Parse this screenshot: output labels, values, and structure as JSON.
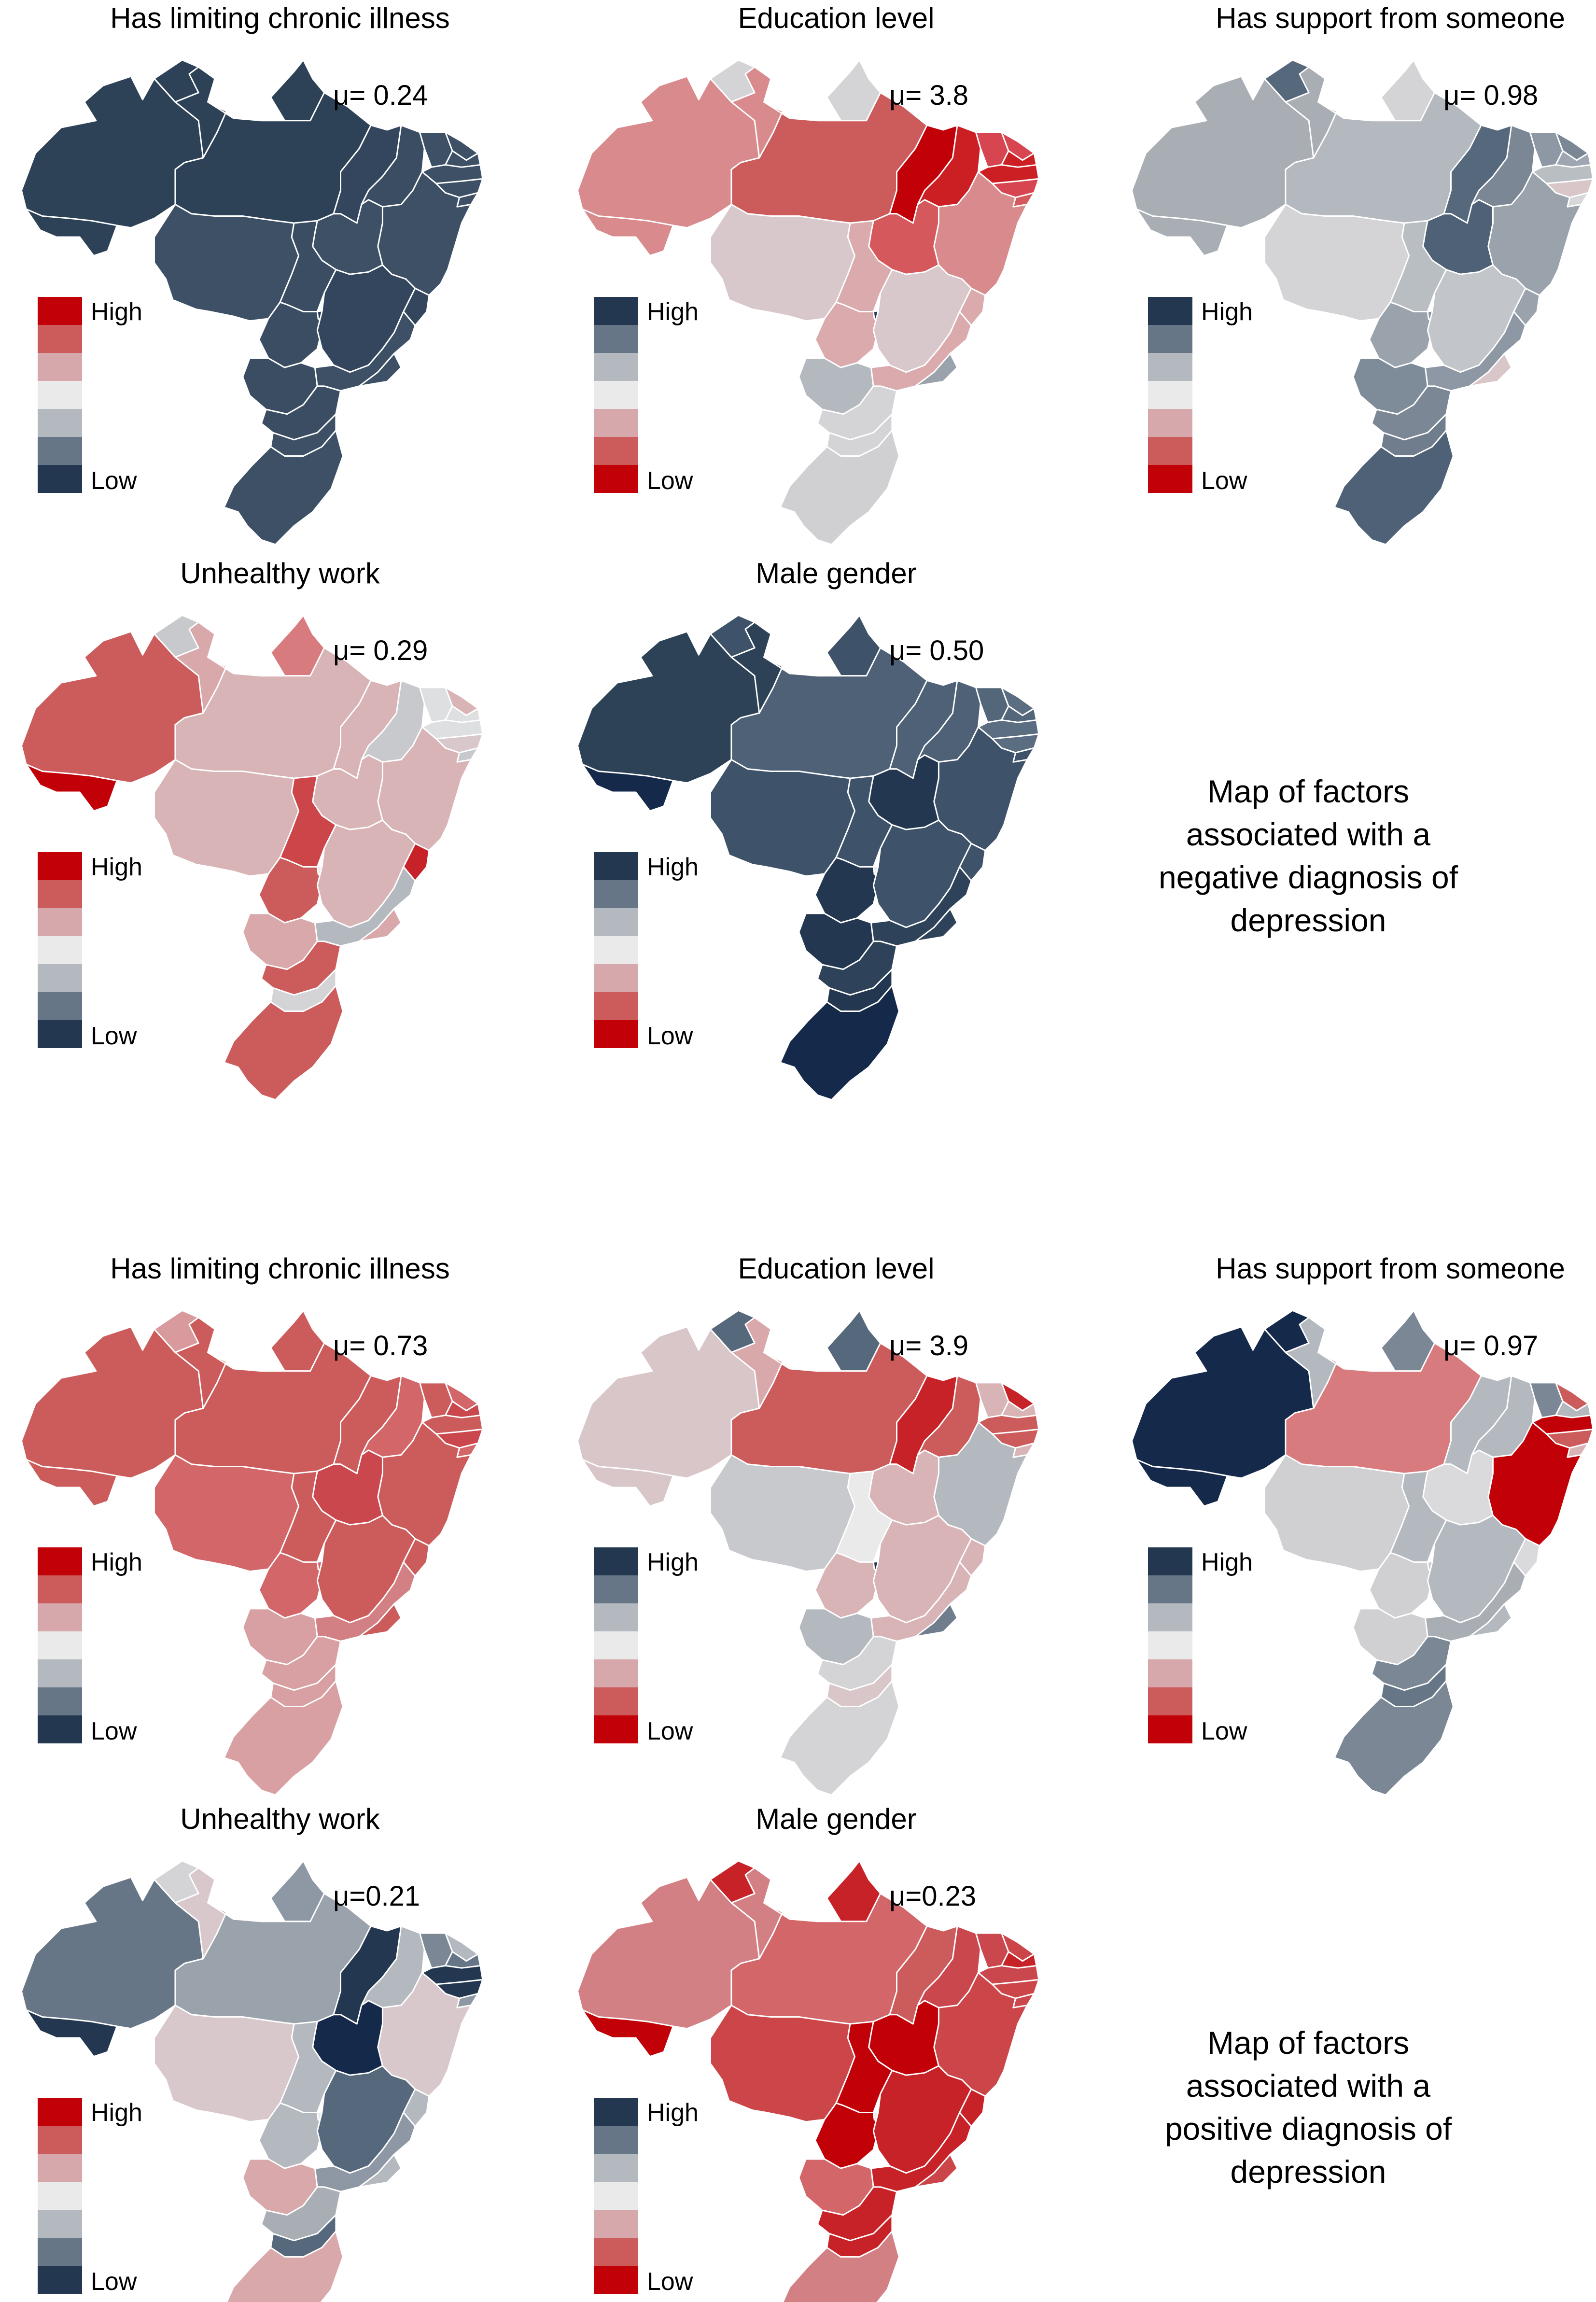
{
  "colors": {
    "navy": [
      "#233850",
      "#667687",
      "#b4b9bf"
    ],
    "white": "#eaeaea",
    "red": [
      "#d7a8ab",
      "#cc5c5c",
      "#c20008"
    ],
    "border": "#ffffff"
  },
  "sections": [
    {
      "caption": [
        "Map of factors",
        "associated with a",
        "negative diagnosis of",
        "depression"
      ],
      "panels": [
        {
          "title": "Has limiting chronic illness",
          "mu": "μ= 0.24",
          "legend": {
            "top_label": "High",
            "bottom_label": "Low",
            "scale": [
              "#c20008",
              "#cc5c5c",
              "#d7a8ab",
              "#eaeaea",
              "#b4b9bf",
              "#667687",
              "#233850"
            ]
          },
          "region_colors": [
            "#2d4157",
            "#2d4157",
            "#2d4157",
            "#2d4157",
            "#2d4157",
            "#2d4157",
            "#33465d",
            "#3a4d62",
            "#3d5066",
            "#3d5066",
            "#3d5066",
            "#3d5066",
            "#3d5066",
            "#3d5066",
            "#3d5066",
            "#3d5066",
            "#3d5066",
            "#3a4d62",
            "#3a4d62",
            "#263c55",
            "#33465d",
            "#33465d",
            "#3a4d62",
            "#3d5066",
            "#3d5066",
            "#3a4d62",
            "#3d5066",
            "#3d5066"
          ]
        },
        {
          "title": "Education level",
          "mu": "μ= 3.8",
          "legend": {
            "top_label": "High",
            "bottom_label": "Low",
            "scale": [
              "#233850",
              "#667687",
              "#b4b9bf",
              "#eaeaea",
              "#d7a8ab",
              "#cc5c5c",
              "#c20008"
            ]
          },
          "region_colors": [
            "#d88a8d",
            "#d88a8d",
            "#d88a8d",
            "#d4d4d6",
            "#cc5c5c",
            "#d4d4d6",
            "#c20008",
            "#cc1f24",
            "#d64550",
            "#d64550",
            "#cc1f24",
            "#cc1f24",
            "#d64550",
            "#d4585c",
            "#d88a8d",
            "#d8c8cb",
            "#d4585c",
            "#dbaaac",
            "#dbaaac",
            "#233850",
            "#d8c8cb",
            "#dbaaac",
            "#b4b9bf",
            "#dbaaac",
            "#9aa2ab",
            "#d4d4d6",
            "#d4d4d6",
            "#d0d0d3"
          ]
        },
        {
          "title": "Has support from someone",
          "mu": "μ= 0.98",
          "legend": {
            "top_label": "High",
            "bottom_label": "Low",
            "scale": [
              "#233850",
              "#667687",
              "#b4b9bf",
              "#eaeaea",
              "#d7a8ab",
              "#cc5c5c",
              "#c20008"
            ]
          },
          "region_colors": [
            "#a9aeb4",
            "#a9aeb4",
            "#a9aeb4",
            "#d4d4d6",
            "#b4b9bf",
            "#56687c",
            "#56687c",
            "#7b8795",
            "#8d98a4",
            "#7b8795",
            "#9ea7b1",
            "#b9bec3",
            "#d8c6c9",
            "#d7d7d9",
            "#9aa2ab",
            "#d4d4d6",
            "#4e6176",
            "#b9bec3",
            "#9aa2ab",
            "#8794a1",
            "#c2c5c9",
            "#9aa2ab",
            "#7e8b98",
            "#8d98a4",
            "#d8c6c9",
            "#7b8795",
            "#6f7d8c",
            "#4e6176"
          ]
        },
        {
          "title": "Unhealthy work",
          "mu": "μ= 0.29",
          "legend": {
            "top_label": "High",
            "bottom_label": "Low",
            "scale": [
              "#c20008",
              "#cc5c5c",
              "#d7a8ab",
              "#eaeaea",
              "#b4b9bf",
              "#667687",
              "#233850"
            ]
          },
          "region_colors": [
            "#cc5c5c",
            "#c20008",
            "#d8a8ab",
            "#d77b7f",
            "#d8b4b7",
            "#c8c9cd",
            "#d8b4b7",
            "#c8c9cd",
            "#dedfe1",
            "#d8b4b7",
            "#dedfe1",
            "#dedfe1",
            "#d8c8cb",
            "#c8c9cd",
            "#d8b4b7",
            "#d8b4b7",
            "#d8b4b7",
            "#cc4548",
            "#cc5c5c",
            "#eaeaea",
            "#d8b4b7",
            "#c72228",
            "#d8a8ab",
            "#b4b9bf",
            "#d8a8ab",
            "#cc5c5c",
            "#d4d4d6",
            "#cc5c5c"
          ]
        },
        {
          "title": "Male gender",
          "mu": "μ= 0.50",
          "legend": {
            "top_label": "High",
            "bottom_label": "Low",
            "scale": [
              "#233850",
              "#667687",
              "#b4b9bf",
              "#eaeaea",
              "#d7a8ab",
              "#cc5c5c",
              "#c20008"
            ]
          },
          "region_colors": [
            "#2d4157",
            "#15294a",
            "#2d4157",
            "#3e526a",
            "#4e6176",
            "#3e526a",
            "#4e6176",
            "#4e6176",
            "#54667a",
            "#5b6d80",
            "#54667a",
            "#5b6d80",
            "#5b6d80",
            "#3e526a",
            "#3e526a",
            "#3e526a",
            "#233850",
            "#3e526a",
            "#233850",
            "#eaeaea",
            "#3e526a",
            "#3e526a",
            "#233850",
            "#2e4359",
            "#2e4359",
            "#2e4359",
            "#233850",
            "#15294a"
          ]
        }
      ]
    },
    {
      "caption": [
        "Map of factors",
        "associated with a",
        "positive diagnosis of",
        "depression"
      ],
      "panels": [
        {
          "title": "Has limiting chronic illness",
          "mu": "μ= 0.73",
          "legend": {
            "top_label": "High",
            "bottom_label": "Low",
            "scale": [
              "#c20008",
              "#cc5c5c",
              "#d7a8ab",
              "#eaeaea",
              "#b4b9bf",
              "#667687",
              "#233850"
            ]
          },
          "region_colors": [
            "#cc5c5c",
            "#cc5c5c",
            "#cc5c5c",
            "#cc5c5c",
            "#cc5c5c",
            "#d89a9d",
            "#cc5c5c",
            "#d26669",
            "#cc5c5c",
            "#d26669",
            "#c9474d",
            "#cc5c5c",
            "#c9474d",
            "#d26669",
            "#cc5c5c",
            "#d26669",
            "#c9474d",
            "#cc5c5c",
            "#d26669",
            "#d26669",
            "#cc5c5c",
            "#cc5c5c",
            "#d8a0a3",
            "#d38084",
            "#cc5c5c",
            "#d8a0a3",
            "#d8a0a3",
            "#d8a0a3"
          ]
        },
        {
          "title": "Education level",
          "mu": "μ= 3.9",
          "legend": {
            "top_label": "High",
            "bottom_label": "Low",
            "scale": [
              "#233850",
              "#667687",
              "#b4b9bf",
              "#eaeaea",
              "#d7a8ab",
              "#cc5c5c",
              "#c20008"
            ]
          },
          "region_colors": [
            "#d8c6c9",
            "#d8c6c9",
            "#d8a8ab",
            "#56687c",
            "#cc5c5c",
            "#56687c",
            "#c72228",
            "#cc5c5c",
            "#d8b4b7",
            "#c72228",
            "#d8b4b7",
            "#cc5c5c",
            "#cc5c5c",
            "#d8b4b7",
            "#b4b9bf",
            "#c8c9cd",
            "#d8b4b7",
            "#eaeaea",
            "#d8b4b7",
            "#233850",
            "#d8b4b7",
            "#d8b4b7",
            "#b4b9bf",
            "#d8b4b7",
            "#6f7d8c",
            "#d4d4d6",
            "#d8c6c9",
            "#d4d4d6"
          ]
        },
        {
          "title": "Has support from someone",
          "mu": "μ= 0.97",
          "legend": {
            "top_label": "High",
            "bottom_label": "Low",
            "scale": [
              "#233850",
              "#667687",
              "#b4b9bf",
              "#eaeaea",
              "#d7a8ab",
              "#cc5c5c",
              "#c20008"
            ]
          },
          "region_colors": [
            "#15294a",
            "#15294a",
            "#b4b9bf",
            "#7b8795",
            "#d77b7f",
            "#15294a",
            "#b4b9bf",
            "#b4b9bf",
            "#7b8795",
            "#cc5c5c",
            "#b4b9bf",
            "#c20008",
            "#cc5c5c",
            "#d8b4b7",
            "#c20008",
            "#d0d0d3",
            "#dadadc",
            "#b4b9bf",
            "#d0d0d3",
            "#c8c9cd",
            "#b4b9bf",
            "#dadadc",
            "#d0d0d3",
            "#a9aeb4",
            "#b4b9bf",
            "#7b8795",
            "#667687",
            "#7b8795"
          ]
        },
        {
          "title": "Unhealthy work",
          "mu": "μ=0.21",
          "legend": {
            "top_label": "High",
            "bottom_label": "Low",
            "scale": [
              "#c20008",
              "#cc5c5c",
              "#d7a8ab",
              "#eaeaea",
              "#b4b9bf",
              "#667687",
              "#233850"
            ]
          },
          "region_colors": [
            "#667687",
            "#233850",
            "#d8c8cb",
            "#8d98a4",
            "#9aa2ab",
            "#d4d4d6",
            "#233850",
            "#b4b9bf",
            "#7b8795",
            "#b4b9bf",
            "#667687",
            "#233850",
            "#233850",
            "#8d98a4",
            "#d8c8cb",
            "#d8c8cb",
            "#15294a",
            "#b4b9bf",
            "#b4b9bf",
            "#eaeaea",
            "#56687c",
            "#b4b9bf",
            "#d8a8ab",
            "#8d98a4",
            "#b4b9bf",
            "#a9aeb4",
            "#56687c",
            "#d8a8ab"
          ]
        },
        {
          "title": "Male gender",
          "mu": "μ=0.23",
          "legend": {
            "top_label": "High",
            "bottom_label": "Low",
            "scale": [
              "#233850",
              "#667687",
              "#b4b9bf",
              "#eaeaea",
              "#d7a8ab",
              "#cc5c5c",
              "#c20008"
            ]
          },
          "region_colors": [
            "#d38084",
            "#c20008",
            "#d38084",
            "#c72228",
            "#d26669",
            "#c72228",
            "#cc5c5c",
            "#c9474d",
            "#c9474d",
            "#cc4548",
            "#c72228",
            "#c9474d",
            "#cc4548",
            "#c9474d",
            "#cc4548",
            "#cc4548",
            "#c20008",
            "#c20008",
            "#c20008",
            "#eaeaea",
            "#c72228",
            "#c72228",
            "#d26669",
            "#c72228",
            "#cc4548",
            "#c72228",
            "#c72228",
            "#d38084"
          ]
        }
      ]
    }
  ]
}
